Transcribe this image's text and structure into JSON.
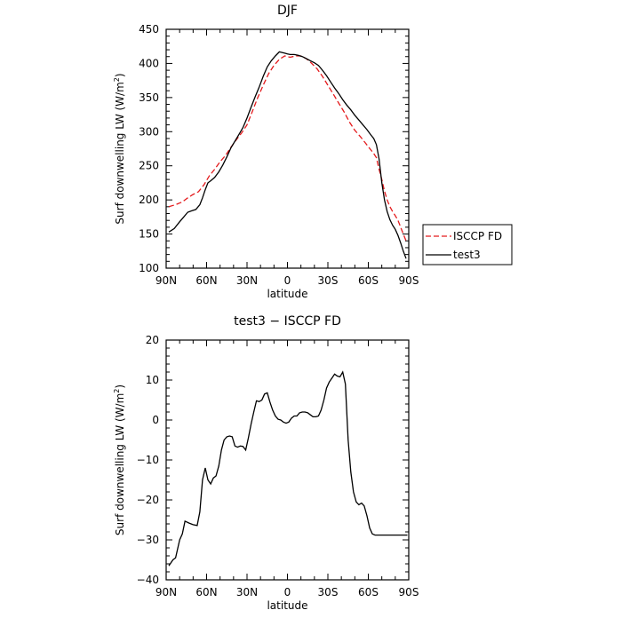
{
  "chart_data": [
    {
      "type": "line",
      "title": "DJF",
      "xlabel": "latitude",
      "ylabel": "Surf downwelling LW (W/m²)",
      "ylabel_unit": "W/m",
      "ylabel_exp": "2",
      "ylabel_prefix": "Surf downwelling LW (",
      "ylabel_suffix": ")",
      "xlim": [
        -90,
        90
      ],
      "ylim": [
        100,
        450
      ],
      "x_ticks": [
        -90,
        -60,
        -30,
        0,
        30,
        60,
        90
      ],
      "x_tick_labels": [
        "90N",
        "60N",
        "30N",
        "0",
        "30S",
        "60S",
        "90S"
      ],
      "y_ticks": [
        100,
        150,
        200,
        250,
        300,
        350,
        400,
        450
      ],
      "y_tick_labels": [
        "100",
        "150",
        "200",
        "250",
        "300",
        "350",
        "400",
        "450"
      ],
      "legend": {
        "placement": "right"
      },
      "series": [
        {
          "name": "ISCCP FD",
          "color": "#e41a1c",
          "dash": "dashed",
          "x": [
            -88,
            -83,
            -78,
            -74,
            -70,
            -66,
            -62,
            -58,
            -54,
            -50,
            -46,
            -42,
            -38,
            -34,
            -30,
            -26,
            -22,
            -18,
            -14,
            -10,
            -6,
            -2,
            2,
            6,
            10,
            14,
            18,
            22,
            26,
            30,
            34,
            38,
            42,
            46,
            50,
            54,
            58,
            62,
            64,
            66,
            68,
            70,
            72,
            74,
            76,
            78,
            80,
            82,
            84,
            86,
            88
          ],
          "y": [
            190,
            193,
            197,
            203,
            208,
            212,
            222,
            235,
            245,
            256,
            265,
            277,
            288,
            298,
            310,
            330,
            350,
            368,
            385,
            397,
            406,
            411,
            409,
            411,
            411,
            407,
            400,
            392,
            381,
            368,
            355,
            342,
            329,
            314,
            302,
            293,
            283,
            273,
            268,
            262,
            245,
            230,
            213,
            200,
            190,
            183,
            177,
            170,
            160,
            150,
            140
          ]
        },
        {
          "name": "test3",
          "color": "#000000",
          "dash": "solid",
          "x": [
            -88,
            -84,
            -80,
            -77,
            -74,
            -71,
            -68,
            -65,
            -63,
            -61,
            -59,
            -57,
            -54,
            -51,
            -48,
            -45,
            -42,
            -39,
            -36,
            -33,
            -30,
            -27,
            -24,
            -21,
            -18,
            -15,
            -12,
            -9,
            -6,
            -4,
            -2,
            0,
            2,
            5,
            8,
            11,
            14,
            17,
            20,
            23,
            26,
            29,
            32,
            35,
            38,
            41,
            44,
            47,
            50,
            53,
            56,
            59,
            62,
            64,
            66,
            68,
            70,
            72,
            74,
            76,
            78,
            80,
            82,
            84,
            86,
            88
          ],
          "y": [
            153,
            158,
            168,
            175,
            182,
            184,
            186,
            193,
            203,
            215,
            225,
            228,
            233,
            241,
            251,
            263,
            276,
            286,
            296,
            306,
            320,
            336,
            351,
            365,
            381,
            395,
            404,
            411,
            417,
            416,
            415,
            414,
            413,
            413,
            412,
            410,
            407,
            404,
            401,
            397,
            390,
            382,
            373,
            364,
            356,
            347,
            339,
            332,
            324,
            317,
            310,
            303,
            295,
            290,
            281,
            260,
            225,
            200,
            183,
            171,
            163,
            157,
            148,
            137,
            125,
            114
          ]
        }
      ]
    },
    {
      "type": "line",
      "title": "test3 − ISCCP FD",
      "xlabel": "latitude",
      "ylabel": "Surf downwelling LW (W/m²)",
      "ylabel_prefix": "Surf downwelling LW (",
      "ylabel_unit": "W/m",
      "ylabel_exp": "2",
      "ylabel_suffix": ")",
      "xlim": [
        -90,
        90
      ],
      "ylim": [
        -40,
        20
      ],
      "x_ticks": [
        -90,
        -60,
        -30,
        0,
        30,
        60,
        90
      ],
      "x_tick_labels": [
        "90N",
        "60N",
        "30N",
        "0",
        "30S",
        "60S",
        "90S"
      ],
      "y_ticks": [
        -40,
        -30,
        -20,
        -10,
        0,
        10,
        20
      ],
      "y_tick_labels": [
        "−40",
        "−30",
        "−20",
        "−10",
        "0",
        "10",
        "20"
      ],
      "series": [
        {
          "color": "#000000",
          "dash": "solid",
          "x": [
            -88,
            -85,
            -83,
            -80,
            -78,
            -76,
            -73,
            -70,
            -67,
            -65,
            -63,
            -61,
            -59,
            -57,
            -55,
            -53,
            -51,
            -49,
            -47,
            -45,
            -43,
            -41,
            -39,
            -37,
            -35,
            -33,
            -31,
            -29,
            -27,
            -25,
            -23,
            -21,
            -19,
            -17,
            -15,
            -13,
            -11,
            -9,
            -7,
            -5,
            -3,
            -1,
            1,
            3,
            5,
            7,
            9,
            11,
            13,
            15,
            17,
            19,
            21,
            23,
            25,
            27,
            29,
            31,
            33,
            35,
            37,
            39,
            41,
            43,
            45,
            47,
            49,
            51,
            53,
            55,
            57,
            59,
            61,
            63,
            65,
            67,
            69,
            71,
            73,
            75,
            77,
            79,
            81,
            83,
            85,
            87,
            89
          ],
          "y": [
            -36.5,
            -35,
            -34.5,
            -30,
            -28.5,
            -25.3,
            -25.8,
            -26.2,
            -26.4,
            -23,
            -15,
            -12,
            -15,
            -16,
            -14.5,
            -14,
            -11.5,
            -7.5,
            -5,
            -4.2,
            -4,
            -4.2,
            -6.5,
            -6.8,
            -6.5,
            -6.6,
            -7.5,
            -4.5,
            -1,
            2,
            4.8,
            4.6,
            5,
            6.5,
            6.8,
            4.5,
            2.5,
            1,
            0.2,
            0,
            -0.5,
            -0.8,
            -0.5,
            0.5,
            1,
            1,
            1.8,
            2,
            2,
            1.8,
            1.3,
            0.8,
            0.8,
            1,
            2.5,
            5,
            8,
            9.5,
            10.5,
            11.5,
            11,
            10.8,
            12,
            9,
            -5,
            -13,
            -18,
            -20.5,
            -21.2,
            -20.8,
            -21.5,
            -24,
            -27,
            -28.5,
            -28.8,
            -28.8,
            -28.8,
            -28.8,
            -28.8,
            -28.8,
            -28.8,
            -28.8,
            -28.8,
            -28.8,
            -28.8,
            -28.8,
            -28.8
          ]
        }
      ]
    }
  ]
}
